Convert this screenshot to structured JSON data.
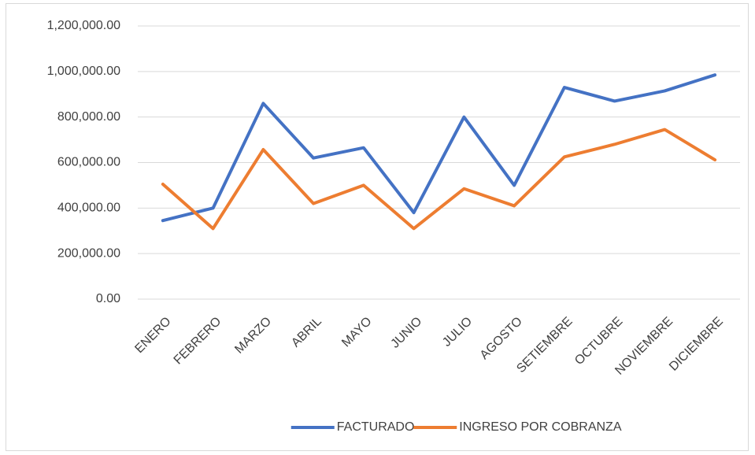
{
  "chart_data": {
    "type": "line",
    "categories": [
      "ENERO",
      "FEBRERO",
      "MARZO",
      "ABRIL",
      "MAYO",
      "JUNIO",
      "JULIO",
      "AGOSTO",
      "SETIEMBRE",
      "OCTUBRE",
      "NOVIEMBRE",
      "DICIEMBRE"
    ],
    "series": [
      {
        "name": "FACTURADO",
        "color": "#4472c4",
        "values": [
          345000,
          400000,
          860000,
          620000,
          665000,
          380000,
          800000,
          500000,
          930000,
          870000,
          915000,
          985000
        ]
      },
      {
        "name": "INGRESO POR COBRANZA",
        "color": "#ed7d31",
        "values": [
          505000,
          310000,
          657000,
          420000,
          500000,
          310000,
          485000,
          410000,
          625000,
          680000,
          745000,
          612000
        ]
      }
    ],
    "ylim": [
      0,
      1200000
    ],
    "yticks": [
      {
        "value": 0,
        "label": "0.00"
      },
      {
        "value": 200000,
        "label": "200,000.00"
      },
      {
        "value": 400000,
        "label": "400,000.00"
      },
      {
        "value": 600000,
        "label": "600,000.00"
      },
      {
        "value": 800000,
        "label": "800,000.00"
      },
      {
        "value": 1000000,
        "label": "1,000,000.00"
      },
      {
        "value": 1200000,
        "label": "1,200,000.00"
      }
    ],
    "grid": true,
    "legend": "bottom"
  }
}
